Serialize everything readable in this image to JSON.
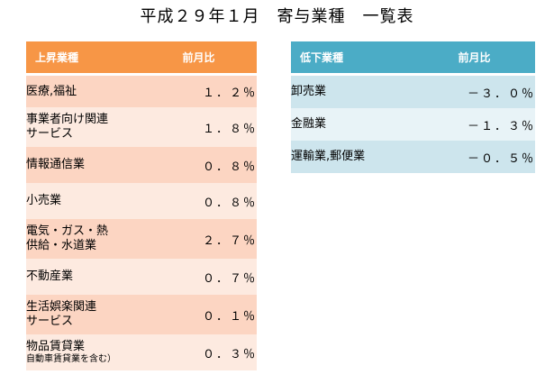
{
  "title": "平成２９年１月　寄与業種　一覧表",
  "up_table": {
    "header_name": "上昇業種",
    "header_value": "前月比",
    "rows": [
      {
        "name": [
          "医療,福祉"
        ],
        "value": "１．２％"
      },
      {
        "name": [
          "事業者向け関連",
          "サービス"
        ],
        "value": "１．８％"
      },
      {
        "name": [
          "情報通信業"
        ],
        "value": "０．８％"
      },
      {
        "name": [
          "小売業"
        ],
        "value": "０．８％"
      },
      {
        "name": [
          "電気・ガス・熱",
          "供給・水道業"
        ],
        "value": "２．７％"
      },
      {
        "name": [
          "不動産業"
        ],
        "value": "０．７％"
      },
      {
        "name": [
          "生活娯楽関連",
          "サービス"
        ],
        "value": "０．１％"
      },
      {
        "name": [
          "物品賃貸業"
        ],
        "note": "自動車賃貸業を含む）",
        "value": "０．３％"
      }
    ]
  },
  "down_table": {
    "header_name": "低下業種",
    "header_value": "前月比",
    "rows": [
      {
        "name": [
          "卸売業"
        ],
        "value": "－３．０％"
      },
      {
        "name": [
          "金融業"
        ],
        "value": "－１．３％"
      },
      {
        "name": [
          "運輸業,郵便業"
        ],
        "value": "－０．５％"
      }
    ]
  },
  "colors": {
    "up_header": "#f79646",
    "up_row_odd": "#fcd5c2",
    "up_row_even": "#fdeae0",
    "down_header": "#4bacc6",
    "down_row_odd": "#cde5ed",
    "down_row_even": "#e8f3f7"
  }
}
